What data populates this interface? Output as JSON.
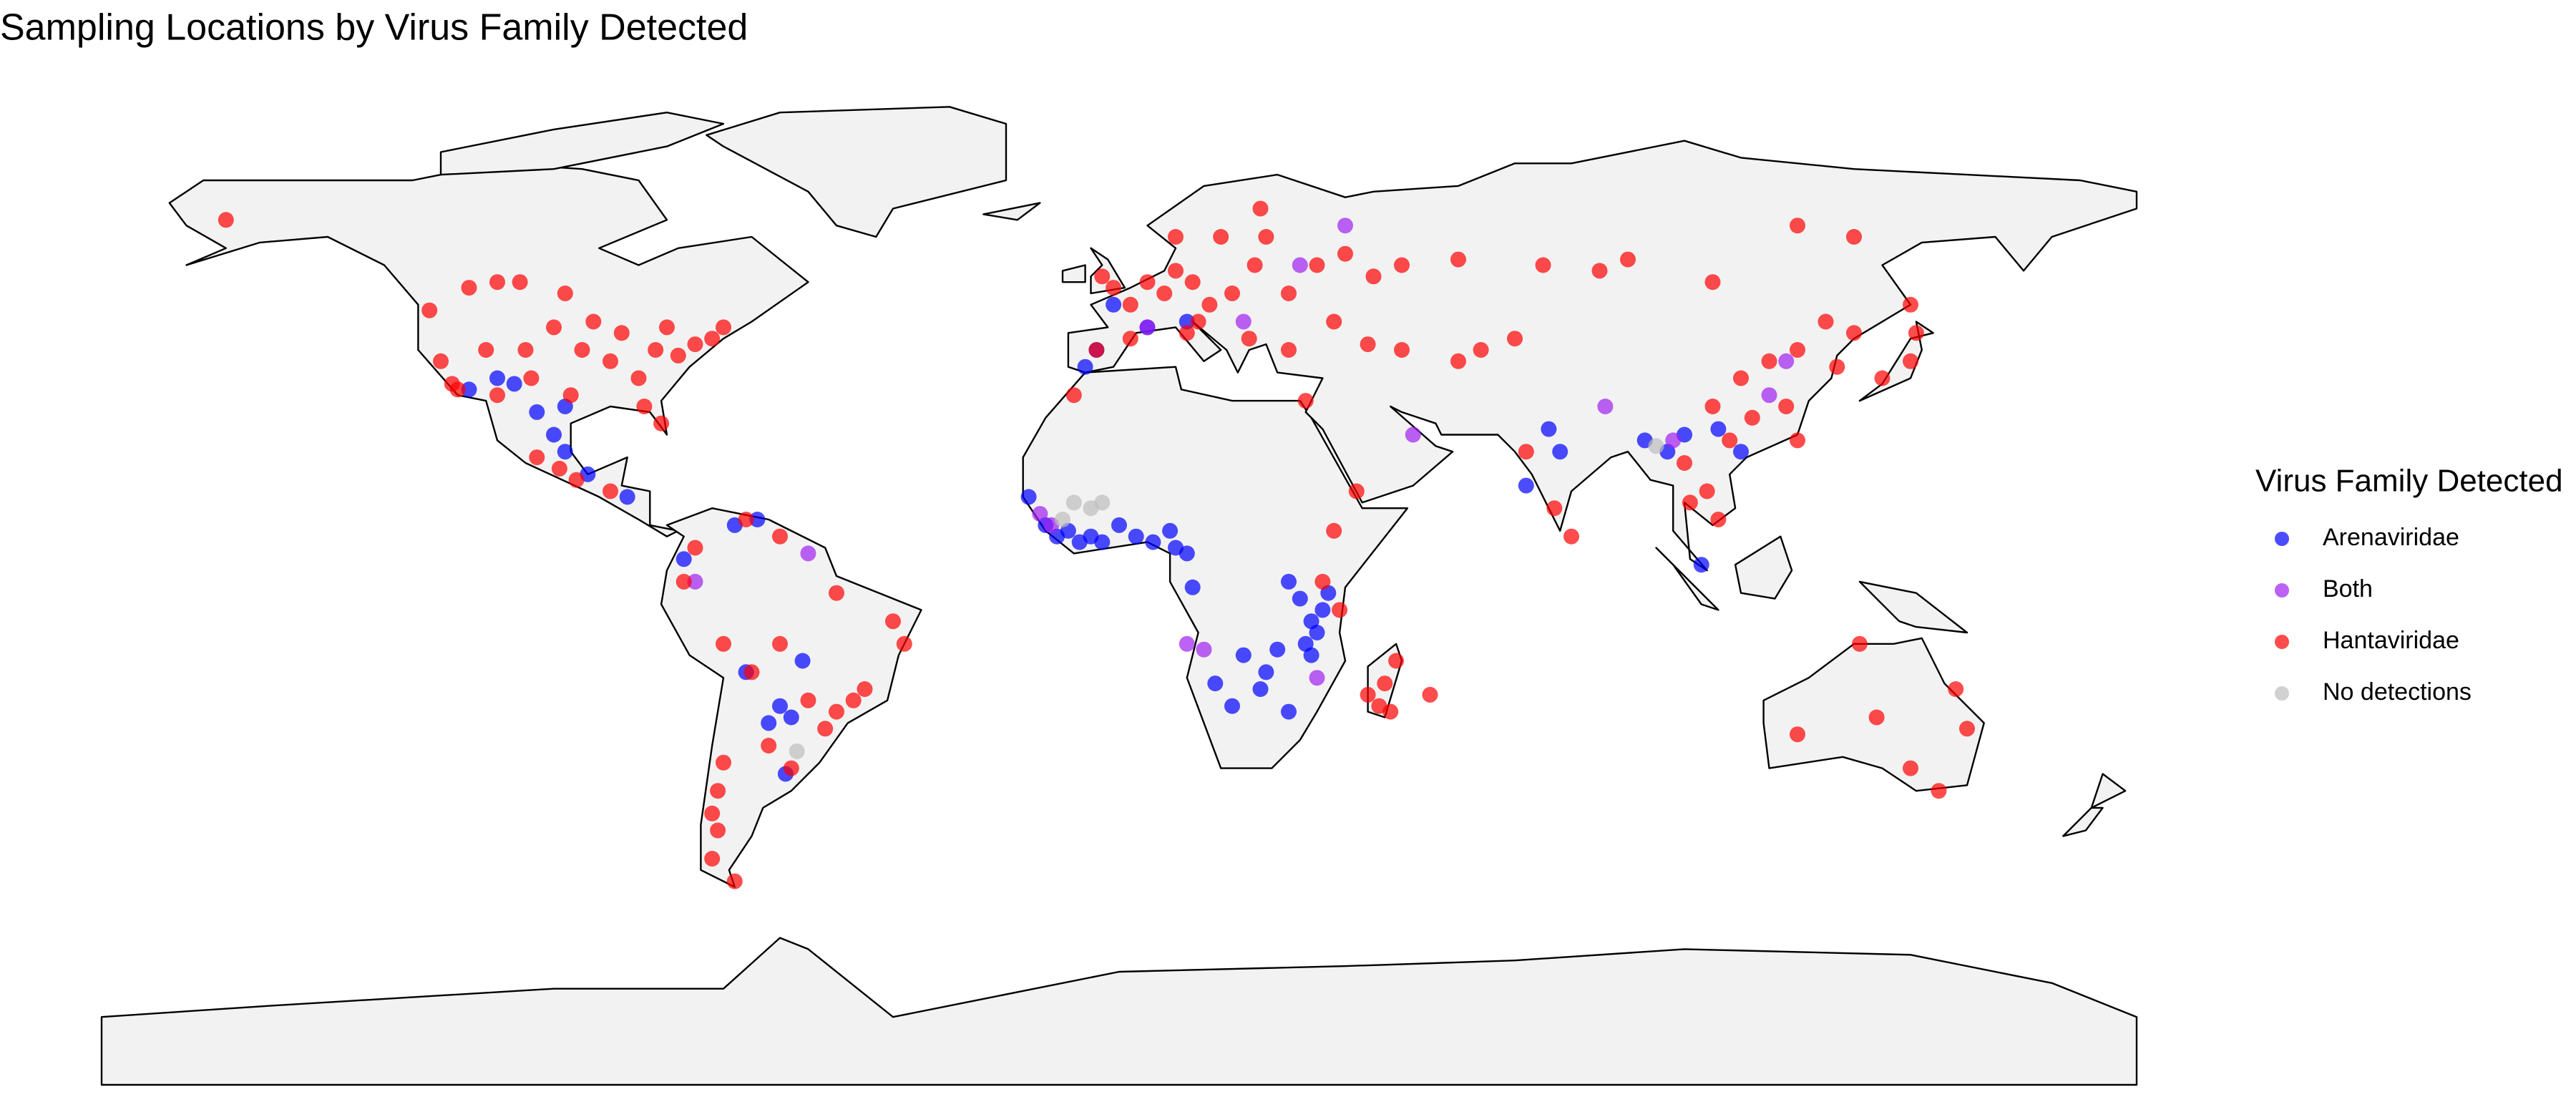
{
  "chart_data": {
    "type": "map",
    "title": "Sampling Locations by Virus Family Detected",
    "legend_title": "Virus Family Detected",
    "legend": "right",
    "series": [
      {
        "name": "Arenaviridae",
        "color": "#0000ff",
        "x": [
          -13,
          -11,
          -9,
          -7,
          -5,
          -3,
          0,
          3,
          6,
          9,
          -16,
          12,
          13,
          10,
          32,
          34,
          35,
          33,
          34,
          36,
          30,
          37,
          28,
          26,
          22,
          17,
          25,
          30,
          20,
          -115,
          -110,
          -107,
          -103,
          -100,
          -98,
          -94,
          -87,
          -68,
          -64,
          -66,
          -60,
          -58,
          -62,
          -56,
          -77,
          -59,
          -98,
          78,
          72,
          76,
          93,
          97,
          100,
          106,
          110,
          103,
          -6,
          -4,
          12,
          5,
          -1
        ],
        "values": [
          9,
          7,
          8,
          6,
          7,
          6,
          9,
          7,
          6,
          8,
          14,
          4,
          -2,
          5,
          -4,
          -8,
          -10,
          -12,
          -14,
          -6,
          -1,
          -3,
          -13,
          -17,
          -14,
          -19,
          -20,
          -24,
          -23,
          33,
          35,
          34,
          29,
          25,
          22,
          18,
          14,
          9,
          10,
          -17,
          -23,
          -25,
          -26,
          -15,
          3,
          -35,
          30,
          22,
          16,
          26,
          24,
          22,
          25,
          26,
          22,
          2,
          37,
          40,
          45,
          44,
          48
        ]
      },
      {
        "name": "Both",
        "color": "#a020f0",
        "x": [
          -14,
          -12,
          12,
          15,
          22,
          32,
          115,
          118,
          98,
          40,
          86,
          5,
          -55,
          -75,
          35,
          52
        ],
        "values": [
          11,
          9,
          -12,
          -13,
          45,
          55,
          32,
          38,
          24,
          62,
          30,
          44,
          4,
          -1,
          -18,
          25
        ]
      },
      {
        "name": "Hantaviridae",
        "color": "#ff0000",
        "x": [
          -122,
          -120,
          -118,
          -117,
          -112,
          -110,
          -105,
          -104,
          -100,
          -97,
          -95,
          -90,
          -85,
          -82,
          -78,
          -75,
          -72,
          -70,
          -88,
          -93,
          -115,
          -110,
          -106,
          -98,
          -80,
          -84,
          -81,
          -158,
          -103,
          -99,
          -96,
          -90,
          -75,
          -66,
          -60,
          -50,
          -40,
          -38,
          -45,
          -47,
          -50,
          -52,
          -55,
          -60,
          -65,
          -70,
          -77,
          -70,
          -71,
          -72,
          -71,
          -72,
          -68,
          -58,
          -62,
          -3,
          -1,
          2,
          5,
          8,
          10,
          13,
          16,
          20,
          24,
          26,
          25,
          18,
          10,
          14,
          23,
          30,
          35,
          40,
          45,
          50,
          -4,
          2,
          12,
          38,
          30,
          60,
          75,
          85,
          90,
          105,
          120,
          130,
          140,
          125,
          130,
          120,
          115,
          110,
          105,
          112,
          118,
          120,
          108,
          100,
          104,
          106,
          101,
          80,
          77,
          72,
          127,
          135,
          140,
          141,
          44,
          50,
          64,
          70,
          60,
          42,
          38,
          33,
          47,
          46,
          49,
          44,
          48,
          55,
          148,
          150,
          145,
          140,
          134,
          120,
          131,
          -8,
          36,
          39
        ],
        "values": [
          47,
          38,
          34,
          33,
          40,
          32,
          40,
          35,
          44,
          32,
          40,
          38,
          35,
          40,
          39,
          41,
          42,
          44,
          43,
          45,
          51,
          52,
          52,
          50,
          44,
          30,
          27,
          63,
          21,
          19,
          17,
          15,
          5,
          10,
          7,
          -3,
          -8,
          -12,
          -20,
          -22,
          -24,
          -27,
          -22,
          -12,
          -17,
          -12,
          -1,
          -33,
          -38,
          -42,
          -45,
          -50,
          -54,
          -34,
          -30,
          53,
          51,
          48,
          52,
          50,
          54,
          52,
          48,
          50,
          55,
          60,
          65,
          60,
          60,
          45,
          42,
          50,
          55,
          57,
          53,
          55,
          40,
          42,
          43,
          45,
          40,
          56,
          55,
          54,
          56,
          52,
          62,
          60,
          48,
          45,
          43,
          40,
          38,
          35,
          30,
          28,
          30,
          24,
          24,
          20,
          15,
          10,
          13,
          7,
          12,
          22,
          37,
          35,
          38,
          43,
          41,
          40,
          40,
          42,
          38,
          15,
          8,
          31,
          -19,
          -23,
          -15,
          -21,
          -24,
          -21,
          -20,
          -27,
          -38,
          -34,
          -25,
          -28,
          -12,
          32,
          -1,
          -6
        ]
      },
      {
        "name": "No detections",
        "color": "#bebebe",
        "x": [
          -8,
          -5,
          -3,
          -10,
          -57,
          95
        ],
        "values": [
          13,
          12,
          13,
          10,
          -31,
          23
        ]
      }
    ]
  }
}
